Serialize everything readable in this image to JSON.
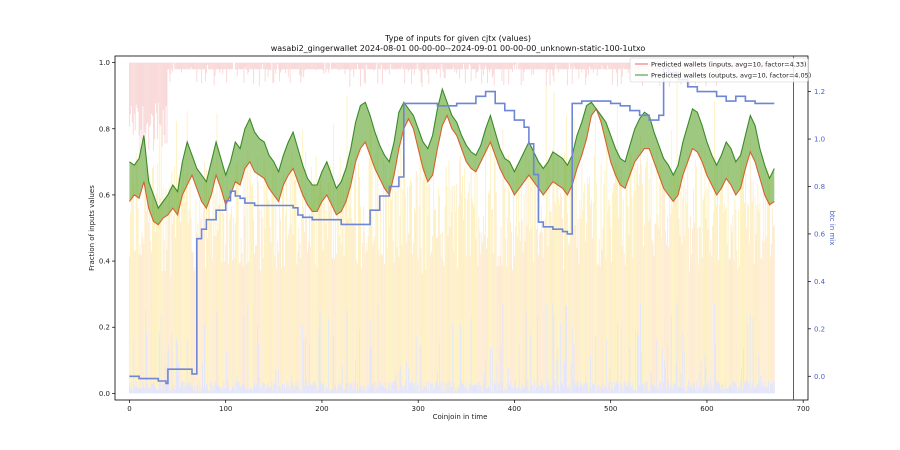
{
  "chart_data": {
    "type": "line",
    "title": "Type of inputs for given cjtx (values)",
    "subtitle": "wasabi2_gingerwallet 2024-08-01 00-00-00--2024-09-01 00-00-00_unknown-static-100-1utxo",
    "xlabel": "Coinjoin in time",
    "ylabel": "Fraction of inputs values",
    "y2label": "btc in mix",
    "xlim": [
      -15,
      705
    ],
    "ylim": [
      -0.02,
      1.02
    ],
    "y2lim": [
      -0.1,
      1.35
    ],
    "x_ticks": [
      "0",
      "100",
      "200",
      "300",
      "400",
      "500",
      "600",
      "700"
    ],
    "y_ticks": [
      "0.0",
      "0.2",
      "0.4",
      "0.6",
      "0.8",
      "1.0"
    ],
    "y2_ticks": [
      "0.0",
      "0.2",
      "0.4",
      "0.6",
      "0.8",
      "1.0",
      "1.2"
    ],
    "grid": false,
    "legend_position": "top-right",
    "colors": {
      "inputs_line": "#d9622b",
      "outputs_line": "#3a8a2a",
      "fill": "#6aaa3a",
      "btc_line": "#6f86d6",
      "bar_red": "#f4b6b6",
      "bar_yellow": "#fde68a",
      "bar_orange": "#fcd9a8",
      "bar_blue": "#c9cdf5",
      "vline": "#b22222"
    },
    "vline_x": 690,
    "series": [
      {
        "name": "Predicted wallets (inputs, avg=10, factor=4.33)",
        "axis": "left",
        "x": [
          0,
          5,
          10,
          15,
          20,
          25,
          30,
          35,
          40,
          45,
          50,
          55,
          60,
          65,
          70,
          75,
          80,
          85,
          90,
          95,
          100,
          105,
          110,
          115,
          120,
          125,
          130,
          135,
          140,
          145,
          150,
          155,
          160,
          165,
          170,
          175,
          180,
          185,
          190,
          195,
          200,
          205,
          210,
          215,
          220,
          225,
          230,
          235,
          240,
          245,
          250,
          255,
          260,
          265,
          270,
          275,
          280,
          285,
          290,
          295,
          300,
          305,
          310,
          315,
          320,
          325,
          330,
          335,
          340,
          345,
          350,
          355,
          360,
          365,
          370,
          375,
          380,
          385,
          390,
          395,
          400,
          405,
          410,
          415,
          420,
          425,
          430,
          435,
          440,
          445,
          450,
          455,
          460,
          465,
          470,
          475,
          480,
          485,
          490,
          495,
          500,
          505,
          510,
          515,
          520,
          525,
          530,
          535,
          540,
          545,
          550,
          555,
          560,
          565,
          570,
          575,
          580,
          585,
          590,
          595,
          600,
          605,
          610,
          615,
          620,
          625,
          630,
          635,
          640,
          645,
          650,
          655,
          660,
          665,
          670
        ],
        "values": [
          0.58,
          0.6,
          0.59,
          0.64,
          0.56,
          0.52,
          0.51,
          0.53,
          0.54,
          0.56,
          0.54,
          0.6,
          0.63,
          0.66,
          0.62,
          0.58,
          0.56,
          0.6,
          0.66,
          0.62,
          0.57,
          0.6,
          0.64,
          0.63,
          0.68,
          0.7,
          0.67,
          0.66,
          0.65,
          0.62,
          0.6,
          0.58,
          0.63,
          0.66,
          0.68,
          0.64,
          0.6,
          0.57,
          0.55,
          0.55,
          0.58,
          0.6,
          0.57,
          0.54,
          0.55,
          0.58,
          0.63,
          0.7,
          0.74,
          0.76,
          0.72,
          0.68,
          0.65,
          0.62,
          0.6,
          0.66,
          0.74,
          0.8,
          0.83,
          0.8,
          0.74,
          0.68,
          0.64,
          0.66,
          0.74,
          0.81,
          0.84,
          0.8,
          0.78,
          0.74,
          0.7,
          0.68,
          0.67,
          0.7,
          0.73,
          0.76,
          0.72,
          0.68,
          0.65,
          0.63,
          0.6,
          0.62,
          0.64,
          0.66,
          0.64,
          0.62,
          0.6,
          0.62,
          0.64,
          0.63,
          0.62,
          0.6,
          0.63,
          0.68,
          0.72,
          0.77,
          0.84,
          0.86,
          0.82,
          0.76,
          0.7,
          0.66,
          0.63,
          0.62,
          0.66,
          0.7,
          0.72,
          0.74,
          0.74,
          0.7,
          0.66,
          0.62,
          0.6,
          0.58,
          0.6,
          0.66,
          0.7,
          0.74,
          0.73,
          0.7,
          0.66,
          0.63,
          0.6,
          0.62,
          0.65,
          0.63,
          0.6,
          0.62,
          0.68,
          0.73,
          0.7,
          0.65,
          0.6,
          0.57,
          0.58
        ]
      },
      {
        "name": "Predicted wallets (outputs, avg=10, factor=4.05)",
        "axis": "left",
        "x": [
          0,
          5,
          10,
          15,
          20,
          25,
          30,
          35,
          40,
          45,
          50,
          55,
          60,
          65,
          70,
          75,
          80,
          85,
          90,
          95,
          100,
          105,
          110,
          115,
          120,
          125,
          130,
          135,
          140,
          145,
          150,
          155,
          160,
          165,
          170,
          175,
          180,
          185,
          190,
          195,
          200,
          205,
          210,
          215,
          220,
          225,
          230,
          235,
          240,
          245,
          250,
          255,
          260,
          265,
          270,
          275,
          280,
          285,
          290,
          295,
          300,
          305,
          310,
          315,
          320,
          325,
          330,
          335,
          340,
          345,
          350,
          355,
          360,
          365,
          370,
          375,
          380,
          385,
          390,
          395,
          400,
          405,
          410,
          415,
          420,
          425,
          430,
          435,
          440,
          445,
          450,
          455,
          460,
          465,
          470,
          475,
          480,
          485,
          490,
          495,
          500,
          505,
          510,
          515,
          520,
          525,
          530,
          535,
          540,
          545,
          550,
          555,
          560,
          565,
          570,
          575,
          580,
          585,
          590,
          595,
          600,
          605,
          610,
          615,
          620,
          625,
          630,
          635,
          640,
          645,
          650,
          655,
          660,
          665,
          670
        ],
        "values": [
          0.7,
          0.69,
          0.71,
          0.78,
          0.64,
          0.6,
          0.56,
          0.58,
          0.6,
          0.63,
          0.61,
          0.7,
          0.76,
          0.72,
          0.68,
          0.66,
          0.64,
          0.7,
          0.76,
          0.71,
          0.66,
          0.7,
          0.76,
          0.74,
          0.8,
          0.83,
          0.79,
          0.77,
          0.76,
          0.72,
          0.7,
          0.67,
          0.72,
          0.76,
          0.79,
          0.74,
          0.69,
          0.65,
          0.63,
          0.63,
          0.67,
          0.7,
          0.66,
          0.62,
          0.64,
          0.68,
          0.74,
          0.82,
          0.87,
          0.88,
          0.84,
          0.79,
          0.75,
          0.72,
          0.7,
          0.76,
          0.85,
          0.88,
          0.86,
          0.84,
          0.8,
          0.76,
          0.74,
          0.78,
          0.86,
          0.92,
          0.88,
          0.84,
          0.82,
          0.78,
          0.75,
          0.73,
          0.72,
          0.75,
          0.8,
          0.84,
          0.79,
          0.74,
          0.71,
          0.7,
          0.67,
          0.7,
          0.73,
          0.76,
          0.73,
          0.7,
          0.68,
          0.7,
          0.73,
          0.72,
          0.71,
          0.69,
          0.72,
          0.78,
          0.82,
          0.87,
          0.88,
          0.86,
          0.84,
          0.82,
          0.78,
          0.74,
          0.71,
          0.7,
          0.75,
          0.8,
          0.83,
          0.85,
          0.84,
          0.79,
          0.75,
          0.71,
          0.69,
          0.66,
          0.69,
          0.76,
          0.81,
          0.86,
          0.85,
          0.81,
          0.76,
          0.72,
          0.69,
          0.72,
          0.76,
          0.74,
          0.7,
          0.72,
          0.78,
          0.84,
          0.81,
          0.74,
          0.69,
          0.65,
          0.68
        ]
      },
      {
        "name": "",
        "axis": "right",
        "x": [
          0,
          10,
          20,
          30,
          38,
          40,
          60,
          65,
          70,
          75,
          80,
          90,
          100,
          105,
          110,
          115,
          120,
          130,
          140,
          150,
          160,
          170,
          175,
          180,
          190,
          200,
          210,
          220,
          230,
          240,
          250,
          260,
          270,
          280,
          285,
          290,
          300,
          310,
          320,
          330,
          340,
          350,
          360,
          370,
          380,
          390,
          400,
          410,
          415,
          420,
          425,
          430,
          440,
          450,
          455,
          460,
          470,
          480,
          490,
          500,
          510,
          520,
          530,
          540,
          550,
          555,
          560,
          570,
          580,
          590,
          600,
          610,
          620,
          630,
          640,
          650,
          660,
          670
        ],
        "values": [
          0.0,
          -0.01,
          -0.01,
          -0.02,
          -0.03,
          0.03,
          0.03,
          0.01,
          0.58,
          0.62,
          0.66,
          0.7,
          0.74,
          0.78,
          0.76,
          0.75,
          0.73,
          0.72,
          0.72,
          0.72,
          0.72,
          0.71,
          0.68,
          0.67,
          0.66,
          0.66,
          0.66,
          0.64,
          0.64,
          0.64,
          0.7,
          0.76,
          0.8,
          0.84,
          1.15,
          1.15,
          1.15,
          1.15,
          1.14,
          1.14,
          1.15,
          1.15,
          1.18,
          1.2,
          1.15,
          1.12,
          1.08,
          1.05,
          0.98,
          0.85,
          0.65,
          0.63,
          0.62,
          0.61,
          0.6,
          1.15,
          1.16,
          1.16,
          1.16,
          1.15,
          1.14,
          1.12,
          1.1,
          1.08,
          1.1,
          1.3,
          1.28,
          1.25,
          1.22,
          1.2,
          1.2,
          1.18,
          1.16,
          1.18,
          1.16,
          1.15,
          1.15,
          1.15
        ]
      }
    ]
  }
}
